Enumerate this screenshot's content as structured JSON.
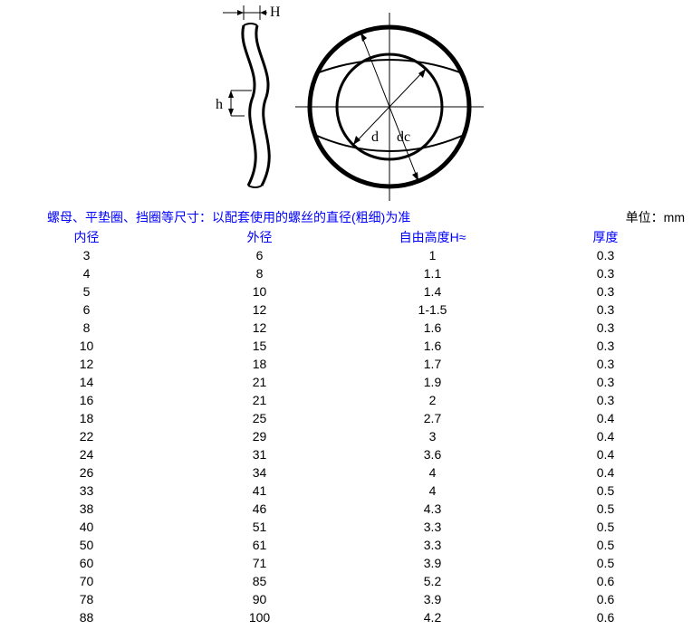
{
  "diagram": {
    "labels": {
      "H": "H",
      "h": "h",
      "d": "d",
      "dc": "dc"
    },
    "stroke": "#000000",
    "stroke_width_main": 2,
    "stroke_width_thin": 1
  },
  "caption": {
    "text": "螺母、平垫圈、挡圈等尺寸：以配套使用的螺丝的直径(粗细)为准",
    "unit": "单位：mm",
    "caption_color": "#0000ff",
    "unit_color": "#000000"
  },
  "table": {
    "header_color": "#0000ff",
    "data_color": "#000000",
    "columns": [
      "内径",
      "外径",
      "自由高度H≈",
      "厚度"
    ],
    "rows": [
      [
        "3",
        "6",
        "1",
        "0.3"
      ],
      [
        "4",
        "8",
        "1.1",
        "0.3"
      ],
      [
        "5",
        "10",
        "1.4",
        "0.3"
      ],
      [
        "6",
        "12",
        "1-1.5",
        "0.3"
      ],
      [
        "8",
        "12",
        "1.6",
        "0.3"
      ],
      [
        "10",
        "15",
        "1.6",
        "0.3"
      ],
      [
        "12",
        "18",
        "1.7",
        "0.3"
      ],
      [
        "14",
        "21",
        "1.9",
        "0.3"
      ],
      [
        "16",
        "21",
        "2",
        "0.3"
      ],
      [
        "18",
        "25",
        "2.7",
        "0.4"
      ],
      [
        "22",
        "29",
        "3",
        "0.4"
      ],
      [
        "24",
        "31",
        "3.6",
        "0.4"
      ],
      [
        "26",
        "34",
        "4",
        "0.4"
      ],
      [
        "33",
        "41",
        "4",
        "0.5"
      ],
      [
        "38",
        "46",
        "4.3",
        "0.5"
      ],
      [
        "40",
        "51",
        "3.3",
        "0.5"
      ],
      [
        "50",
        "61",
        "3.3",
        "0.5"
      ],
      [
        "60",
        "71",
        "3.9",
        "0.5"
      ],
      [
        "70",
        "85",
        "5.2",
        "0.6"
      ],
      [
        "78",
        "90",
        "3.9",
        "0.6"
      ],
      [
        "88",
        "100",
        "4.2",
        "0.6"
      ]
    ]
  }
}
